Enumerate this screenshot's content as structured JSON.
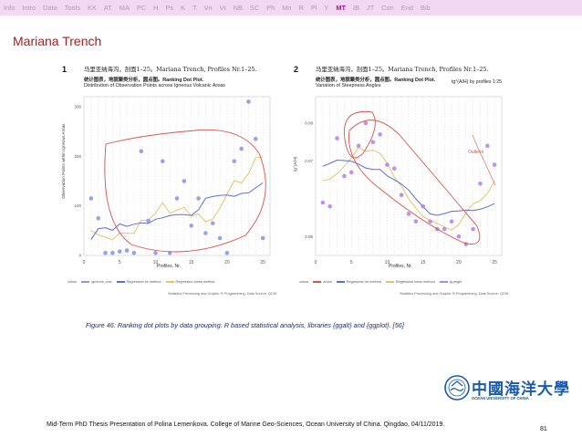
{
  "nav": {
    "items": [
      "Info",
      "Intro",
      "Data",
      "Tools",
      "KK",
      "AT",
      "MA",
      "PC",
      "H",
      "Ps",
      "K",
      "T",
      "Vn",
      "Vt",
      "NB",
      "SC",
      "Ph",
      "Mn",
      "R",
      "Pl",
      "Y",
      "MT",
      "IB",
      "JT",
      "Con",
      "End",
      "Bib"
    ],
    "active_index": 21
  },
  "title": "Mariana Trench",
  "panel1": {
    "number": "1",
    "title_line1": "马里亚纳海沟，剖面1–25。Mariana Trench, Profiles Nr.1–25.",
    "title_line2": "统计图表，地貌聚类分析，圆点图。Ranking Dot Plot.",
    "title_line3": "Distribution of Observation Points across Igneous Volcanic Areas",
    "ylabel": "Observation Points within Igneous Areas",
    "xlabel": "Profiles, Nr.",
    "yticks": [
      "0",
      "100",
      "200",
      "300"
    ],
    "xticks": [
      "0",
      "5",
      "10",
      "15",
      "20",
      "25"
    ],
    "legend": [
      "colour",
      "igneous_volc",
      "Regression lm method",
      "Regression loess method"
    ],
    "source": "Statistics Processing and Graphs: R Programming. Data Source: QGIS"
  },
  "panel2": {
    "number": "2",
    "title_line1": "马里亚纳海沟，剖面1–25。Mariana Trench, Profiles Nr.1–25.",
    "title_line2": "统计图表，地貌聚类分析，圆点图。Ranking Dot Plot.",
    "title_line3": "Variation of Steepness Angles",
    "title_right": "tg°(A/H) by profiles 1:25",
    "ylabel": "tg°(A/H)",
    "xlabel": "Profiles, Nr.",
    "yticks": [
      "0.05",
      "0.07",
      "0.08"
    ],
    "xticks": [
      "0",
      "5",
      "10",
      "15",
      "20",
      "25"
    ],
    "annotation": "Outliers",
    "legend": [
      "colour",
      "arrow",
      "Regression lm method",
      "Regression loess method",
      "tg.angle"
    ],
    "source": "Statistics Processing and Graphs: R Programming. Data Source: QGIS"
  },
  "caption": "Figure 46: Ranking dot plots by data grouping: R based statistical analysis, libraries {ggalt} and {ggplot}. [56]",
  "logo": {
    "cn": "中國海洋大學",
    "en": "OCEAN UNIVERSITY OF CHINA"
  },
  "footer": "Mid-Term PhD Thesis Presentation of Polina Lemenkova. College of Marine Geo-Sciences, Ocean University of China. Qingdao, 04/11/2019.",
  "page_number": "81",
  "colors": {
    "nav_bg": "#f2d8f3",
    "nav_text": "#b696b8",
    "nav_active": "#9b1b9e",
    "title": "#b01b1b",
    "caption": "#1f2d6b"
  },
  "chart_data": [
    {
      "type": "scatter",
      "title": "Distribution of Observation Points across Igneous Volcanic Areas",
      "xlabel": "Profiles, Nr.",
      "ylabel": "Observation Points within Igneous Areas",
      "xlim": [
        0,
        26
      ],
      "ylim": [
        0,
        320
      ],
      "x": [
        1,
        2,
        3,
        4,
        5,
        6,
        7,
        8,
        9,
        10,
        11,
        12,
        13,
        14,
        15,
        16,
        17,
        18,
        19,
        20,
        21,
        22,
        23,
        24,
        25
      ],
      "y": [
        115,
        75,
        5,
        5,
        8,
        10,
        5,
        210,
        70,
        5,
        190,
        5,
        115,
        150,
        60,
        115,
        45,
        65,
        35,
        5,
        190,
        215,
        310,
        235,
        35
      ],
      "grid": true
    },
    {
      "type": "scatter",
      "title": "Variation of Steepness Angles",
      "xlabel": "Profiles, Nr.",
      "ylabel": "tg°(A/H)",
      "xlim": [
        0,
        26
      ],
      "ylim": [
        0.045,
        0.087
      ],
      "x": [
        1,
        2,
        3,
        4,
        5,
        6,
        7,
        8,
        9,
        10,
        11,
        12,
        13,
        14,
        15,
        16,
        17,
        18,
        19,
        20,
        21,
        22,
        23,
        24,
        25
      ],
      "y": [
        0.059,
        0.058,
        0.076,
        0.066,
        0.067,
        0.074,
        0.08,
        0.075,
        0.077,
        0.069,
        0.068,
        0.061,
        0.056,
        0.054,
        0.058,
        0.054,
        0.052,
        0.052,
        0.054,
        0.05,
        0.048,
        0.052,
        0.064,
        0.074,
        0.069
      ],
      "grid": true
    }
  ]
}
